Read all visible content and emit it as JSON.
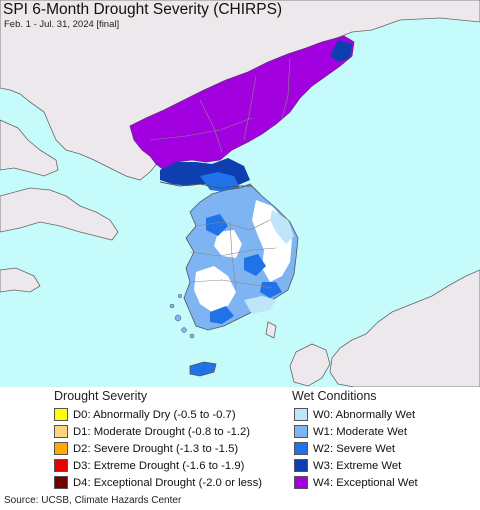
{
  "title": "SPI 6-Month Drought Severity (CHIRPS)",
  "subtitle": "Feb. 1 - Jul. 31, 2024 [final]",
  "source": "Source: UCSB, Climate Hazards Center",
  "map": {
    "region": "Korean Peninsula",
    "colors": {
      "water": "#c6fbfb",
      "land": "#ece8ec",
      "no_drought": "#ffffff",
      "border": "#888888"
    }
  },
  "legend": {
    "drought_heading": "Drought Severity",
    "wet_heading": "Wet Conditions",
    "drought": [
      {
        "code": "D0",
        "label": "D0: Abnormally Dry (-0.5 to -0.7)",
        "color": "#ffff00"
      },
      {
        "code": "D1",
        "label": "D1: Moderate Drought (-0.8 to -1.2)",
        "color": "#fcd37f"
      },
      {
        "code": "D2",
        "label": "D2: Severe Drought (-1.3 to -1.5)",
        "color": "#ffaa00"
      },
      {
        "code": "D3",
        "label": "D3: Extreme Drought (-1.6 to -1.9)",
        "color": "#e60000"
      },
      {
        "code": "D4",
        "label": "D4: Exceptional Drought (-2.0 or less)",
        "color": "#730000"
      }
    ],
    "wet": [
      {
        "code": "W0",
        "label": "W0: Abnormally Wet",
        "color": "#bfe6f8"
      },
      {
        "code": "W1",
        "label": "W1: Moderate Wet",
        "color": "#7fb4f2"
      },
      {
        "code": "W2",
        "label": "W2: Severe Wet",
        "color": "#1f72e8"
      },
      {
        "code": "W3",
        "label": "W3: Extreme Wet",
        "color": "#0d3fb0"
      },
      {
        "code": "W4",
        "label": "W4: Exceptional Wet",
        "color": "#a300e0"
      }
    ]
  }
}
